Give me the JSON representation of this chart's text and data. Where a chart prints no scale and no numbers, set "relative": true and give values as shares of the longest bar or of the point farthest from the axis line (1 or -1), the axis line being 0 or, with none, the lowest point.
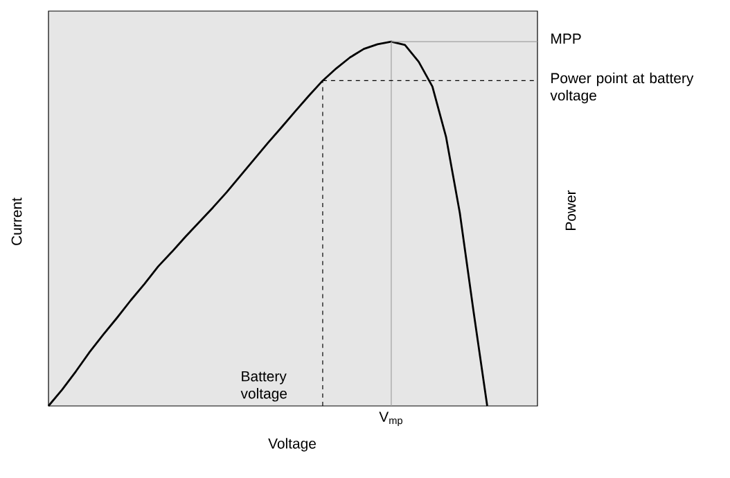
{
  "chart_data": {
    "type": "line",
    "relative": true,
    "xlabel": "Voltage",
    "ylabel": "Current",
    "y2label": "Power",
    "tick_labels": false,
    "line_style": "solid",
    "categories": [
      null,
      null,
      null,
      null,
      null,
      null,
      null,
      null,
      null,
      null,
      null,
      null,
      null,
      null,
      null,
      null,
      null,
      null,
      null,
      null,
      null,
      null,
      null,
      null,
      null,
      null,
      null,
      null,
      null,
      null,
      null,
      null,
      null,
      null,
      null,
      null
    ],
    "series": [
      {
        "color": "#000000",
        "values": [
          0,
          0.045,
          0.095,
          0.148,
          0.196,
          0.242,
          0.29,
          0.335,
          0.383,
          0.423,
          0.465,
          0.505,
          0.545,
          0.587,
          0.632,
          0.677,
          0.722,
          0.765,
          0.809,
          0.852,
          0.893,
          0.927,
          0.957,
          0.98,
          0.993,
          1,
          0.991,
          0.945,
          0.877,
          0.738,
          0.53,
          0.26,
          0,
          null,
          null,
          null
        ]
      }
    ],
    "ref_lines": [
      {
        "axis": "y",
        "value": 1,
        "label": "MPP",
        "color": "#a0a0a0",
        "line_style": "solid"
      },
      {
        "axis": "y",
        "value": 0.893,
        "label": "Power point at battery voltage",
        "color": "#000000",
        "line_style": "dashed"
      }
    ],
    "annotations": [
      "V$_{mp}$",
      "Battery voltage"
    ]
  }
}
